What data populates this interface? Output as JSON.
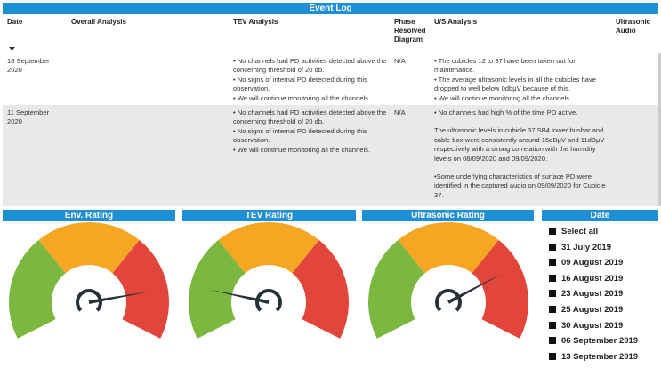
{
  "header": {
    "title": "Event Log"
  },
  "table": {
    "columns": [
      "Date",
      "Overall Analysis",
      "TEV Analysis",
      "Phase Resolved Diagram",
      "U/S Analysis",
      "Ultrasonic Audio"
    ],
    "rows": [
      [
        [
          "18 September 2020"
        ],
        [],
        [
          "• No channels had PD activities detected above the concerning threshold of 20 db.",
          "• No signs of internal PD detected during this observation.",
          "• We will continue monitoring all the channels."
        ],
        [
          "N/A"
        ],
        [
          "• The cubicles 12 to 37 have been taken out for maintenance.",
          "• The average ultrasonic levels in all the cubicles have dropped to well below 0dbμV because of this.",
          "• We will continue monitoring all the channels."
        ],
        []
      ],
      [
        [
          "11 September 2020"
        ],
        [],
        [
          "• No channels had PD activities detected above the concerning threshold of 20 db.",
          "• No signs of internal PD detected during this observation.",
          "• We will continue monitoring all the channels."
        ],
        [
          "N/A"
        ],
        [
          "• No channels had high % of the time PD active.",
          "The ultrasonic levels in cubicle 37 SB4 lower busbar and cable box were consistently around 16dBμV and 11dBμV respectively with a strong correlation with the humidity levels on 08/09/2020 and 09/09/2020.",
          "•Some underlying characteristics of surface PD were identified in the captured audio on 09/09/2020 for Cubicle 37."
        ],
        []
      ]
    ]
  },
  "gauges": [
    {
      "title": "Env. Rating"
    },
    {
      "title": "TEV Rating"
    },
    {
      "title": "Ultrasonic Rating"
    }
  ],
  "date_slicer": {
    "title": "Date",
    "items": [
      "Select all",
      "31 July 2019",
      "09 August 2019",
      "16 August 2019",
      "23 August 2019",
      "25 August 2019",
      "30 August 2019",
      "06 September 2019",
      "13 September 2019"
    ]
  }
}
